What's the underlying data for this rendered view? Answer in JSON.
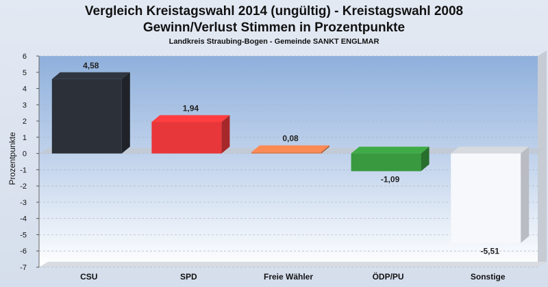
{
  "chart_data": {
    "type": "bar",
    "title": "Vergleich Kreistagswahl 2014 (ungültig) - Kreistagswahl 2008",
    "subtitle": "Gewinn/Verlust Stimmen in Prozentpunkte",
    "subtitle2": "Landkreis Straubing-Bogen - Gemeinde SANKT ENGLMAR",
    "xlabel": "",
    "ylabel": "Prozentpunkte",
    "ylim": [
      -7,
      6
    ],
    "yticks": [
      6,
      5,
      4,
      3,
      2,
      1,
      0,
      -1,
      -2,
      -3,
      -4,
      -5,
      -6,
      -7
    ],
    "grid": true,
    "legend": "none",
    "categories": [
      "CSU",
      "SPD",
      "Freie Wähler",
      "ÖDP/PU",
      "Sonstige"
    ],
    "values": [
      4.58,
      1.94,
      0.08,
      -1.09,
      -5.51
    ],
    "value_labels": [
      "4,58",
      "1,94",
      "0,08",
      "-1,09",
      "-5,51"
    ],
    "colors": [
      "#2b3039",
      "#e8373a",
      "#e07b4b",
      "#38993f",
      "#f6f8fb"
    ]
  }
}
